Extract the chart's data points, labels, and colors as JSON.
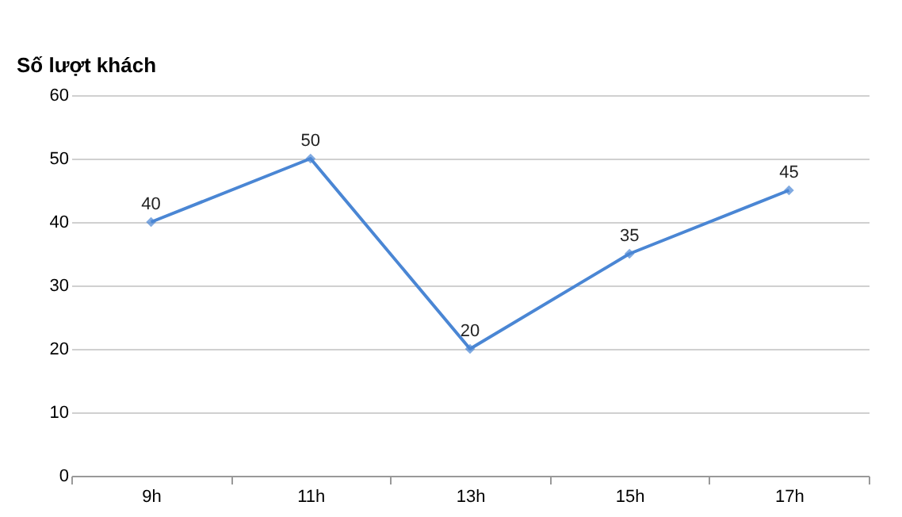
{
  "chart_data": {
    "type": "line",
    "ylabel": "Số lượt khách",
    "categories": [
      "9h",
      "11h",
      "13h",
      "15h",
      "17h"
    ],
    "series": [
      {
        "color": "#4a86d4",
        "values": [
          40,
          50,
          20,
          35,
          45
        ]
      }
    ],
    "ylim": [
      0,
      60
    ],
    "yticks": [
      0,
      10,
      20,
      30,
      40,
      50,
      60
    ],
    "grid": "y",
    "marker": "diamond",
    "line_style": "solid",
    "data_labels": true
  }
}
